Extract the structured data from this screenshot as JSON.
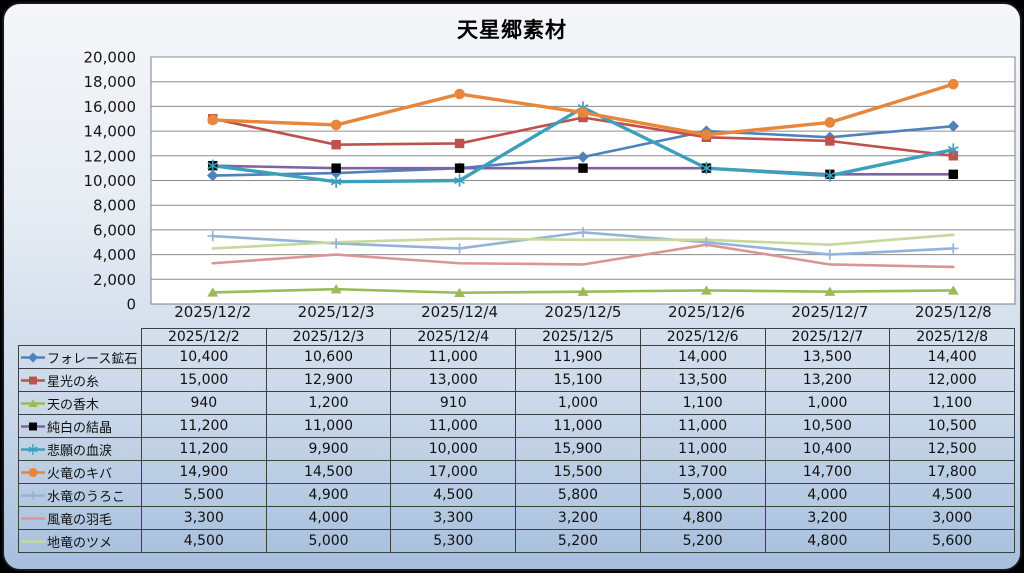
{
  "chart_data": {
    "type": "line",
    "title": "天星郷素材",
    "x": [
      "2025/12/2",
      "2025/12/3",
      "2025/12/4",
      "2025/12/5",
      "2025/12/6",
      "2025/12/7",
      "2025/12/8"
    ],
    "ylim": [
      0,
      20000
    ],
    "ytick_step": 2000,
    "y_tick_labels": [
      "0",
      "2,000",
      "4,000",
      "6,000",
      "8,000",
      "10,000",
      "12,000",
      "14,000",
      "16,000",
      "18,000",
      "20,000"
    ],
    "grid": true,
    "legend_position": "table-left",
    "plot_bg": "#ffffff",
    "grid_color": "#8c8c8c",
    "series": [
      {
        "name": "フォレース鉱石",
        "color": "#4F81BD",
        "marker": "diamond",
        "values": [
          10400,
          10600,
          11000,
          11900,
          14000,
          13500,
          14400
        ]
      },
      {
        "name": "星光の糸",
        "color": "#C0504D",
        "marker": "square",
        "values": [
          15000,
          12900,
          13000,
          15100,
          13500,
          13200,
          12000
        ]
      },
      {
        "name": "天の香木",
        "color": "#9BBB59",
        "marker": "triangle",
        "values": [
          940,
          1200,
          910,
          1000,
          1100,
          1000,
          1100
        ]
      },
      {
        "name": "純白の結晶",
        "color": "#8064A2",
        "marker": "square",
        "marker_color": "#000000",
        "values": [
          11200,
          11000,
          11000,
          11000,
          11000,
          10500,
          10500
        ]
      },
      {
        "name": "悲願の血涙",
        "color": "#3BA0BC",
        "marker": "asterisk",
        "values": [
          11200,
          9900,
          10000,
          15900,
          11000,
          10400,
          12500
        ]
      },
      {
        "name": "火竜のキバ",
        "color": "#E8863B",
        "marker": "circle",
        "values": [
          14900,
          14500,
          17000,
          15500,
          13700,
          14700,
          17800
        ]
      },
      {
        "name": "水竜のうろこ",
        "color": "#95B3D7",
        "marker": "plus",
        "values": [
          5500,
          4900,
          4500,
          5800,
          5000,
          4000,
          4500
        ]
      },
      {
        "name": "風竜の羽毛",
        "color": "#D99694",
        "marker": "none",
        "values": [
          3300,
          4000,
          3300,
          3200,
          4800,
          3200,
          3000
        ]
      },
      {
        "name": "地竜のツメ",
        "color": "#C6D89B",
        "marker": "none",
        "values": [
          4500,
          5000,
          5300,
          5200,
          5200,
          4800,
          5600
        ]
      }
    ]
  }
}
